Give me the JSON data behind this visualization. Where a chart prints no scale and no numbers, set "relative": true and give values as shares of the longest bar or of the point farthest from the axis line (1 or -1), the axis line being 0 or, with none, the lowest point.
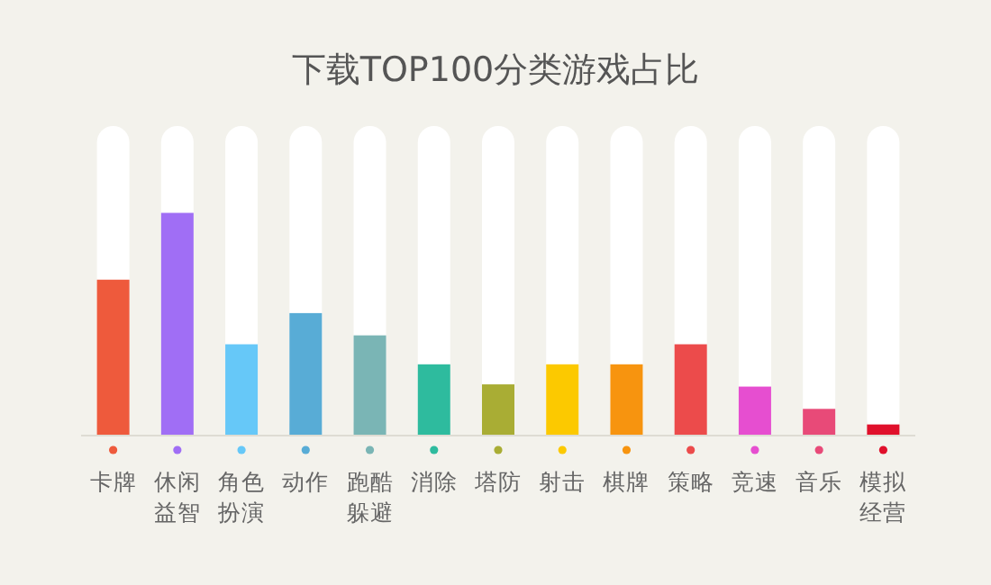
{
  "chart_data": {
    "type": "bar",
    "title": "下载TOP100分类游戏占比",
    "categories": [
      "卡牌",
      "休闲益智",
      "角色扮演",
      "动作",
      "跑酷躲避",
      "消除",
      "塔防",
      "射击",
      "棋牌",
      "策略",
      "竞速",
      "音乐",
      "模拟经营"
    ],
    "values": [
      0.7,
      1,
      0.41,
      0.55,
      0.45,
      0.32,
      0.23,
      0.32,
      0.32,
      0.41,
      0.22,
      0.12,
      0.05
    ],
    "colors": [
      "#ee5a3c",
      "#a06ef5",
      "#66c8f8",
      "#58acd6",
      "#7ab5b5",
      "#2ebb9e",
      "#a9ad34",
      "#fcc900",
      "#f7940f",
      "#ec4b4b",
      "#e64ed0",
      "#e84a78",
      "#e0102b"
    ],
    "relative": true
  }
}
